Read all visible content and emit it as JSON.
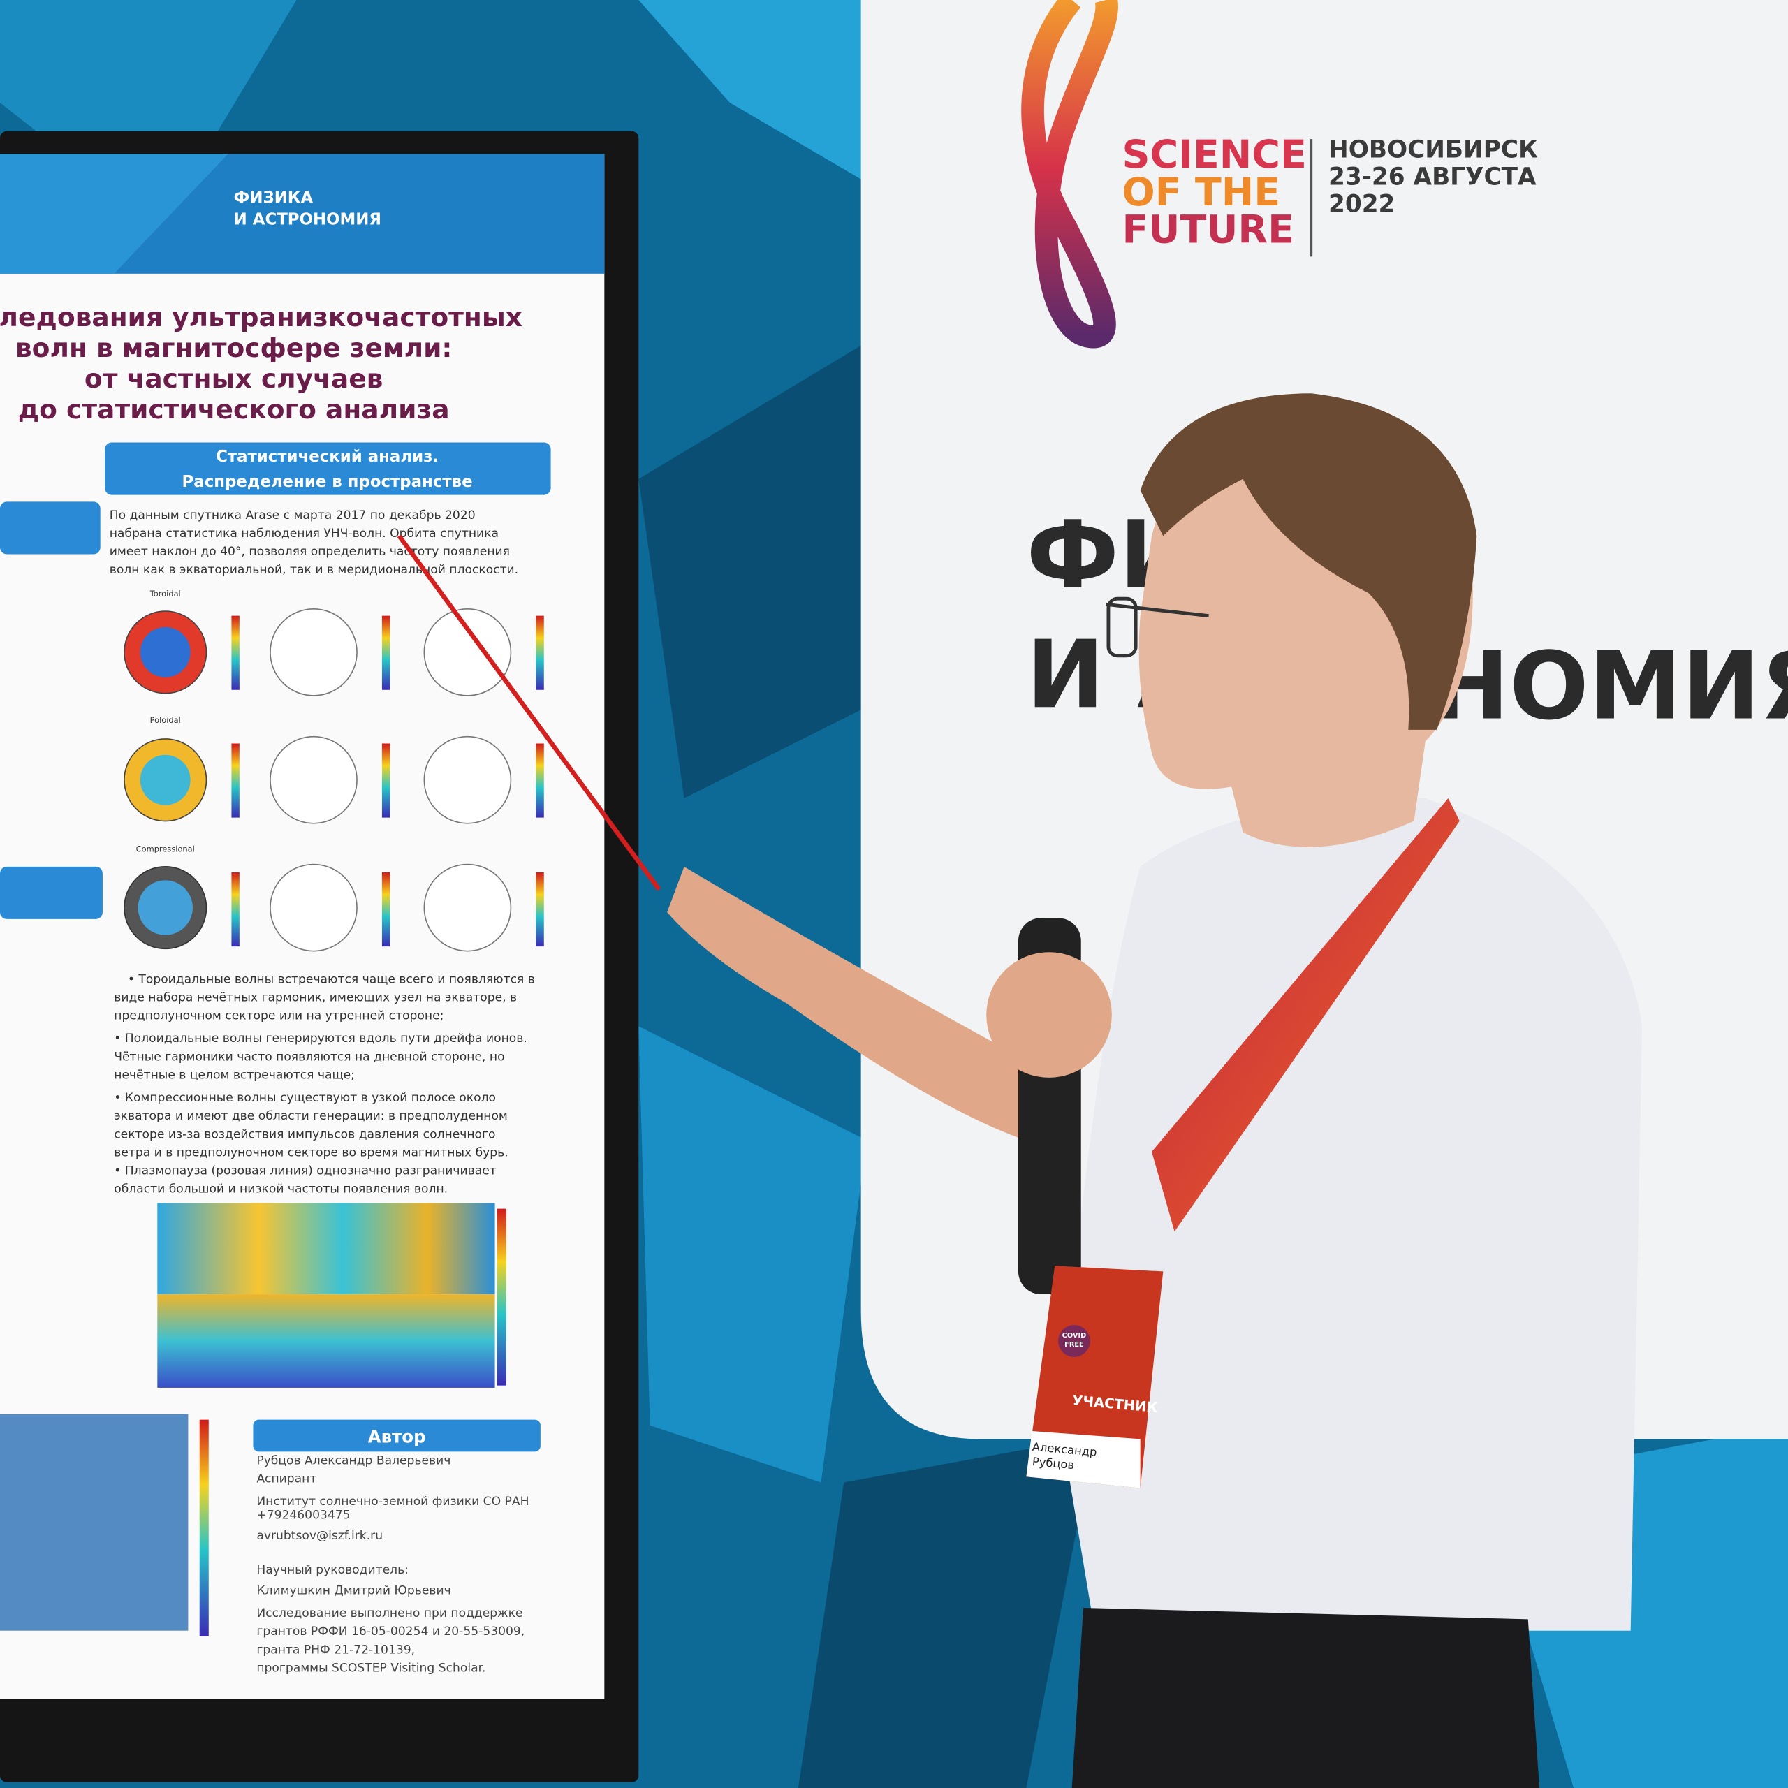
{
  "backdrop": {
    "brand": [
      "SCIENCE",
      "OF THE",
      "FUTURE"
    ],
    "event": [
      "НОВОСИБИРСК",
      "23-26 АВГУСТА",
      "2022"
    ],
    "heading": [
      "ФИ",
      "И А",
      "НОМИЯ"
    ]
  },
  "poster": {
    "section": [
      "ФИЗИКА",
      "И АСТРОНОМИЯ"
    ],
    "title": [
      "сследования ультранизкочастотных",
      "волн в магнитосфере земли:",
      "от частных случаев",
      "до статистического анализа"
    ],
    "box_title": [
      "Статистический анализ.",
      "Распределение в пространстве"
    ],
    "intro": [
      "По данным спутника Arase с марта 2017 по декабрь 2020",
      "набрана статистика наблюдения УНЧ-волн. Орбита спутника",
      "имеет наклон до 40°, позволяя определить частоту появления",
      "волн как в экваториальной, так и в меридиональной плоскости."
    ],
    "plot_labels": [
      "Toroidal",
      "Poloidal",
      "Compressional"
    ],
    "bullets": [
      "• Тороидальные волны встречаются чаще всего и появляются в",
      "виде набора нечётных гармоник, имеющих узел на экваторе, в",
      "предполуночном секторе или на утренней стороне;",
      "• Полоидальные волны генерируются вдоль пути дрейфа ионов.",
      "Чётные гармоники часто появляются на дневной стороне, но",
      "нечётные в целом встречаются чаще;",
      "• Компрессионные волны существуют в узкой полосе около",
      "экватора и имеют две области генерации: в предполуденном",
      "секторе из-за воздействия импульсов давления солнечного",
      "ветра и в предполуночном секторе во время магнитных бурь.",
      "• Плазмопауза (розовая линия) однозначно разграничивает",
      "области большой и низкой частоты появления волн."
    ],
    "author_heading": "Автор",
    "author": [
      "Рубцов Александр Валерьевич",
      "Аспирант",
      "Институт солнечно-земной физики СО РАН",
      "+79246003475",
      "avrubtsov@iszf.irk.ru",
      "",
      "Научный руководитель:",
      "Климушкин Дмитрий Юрьевич",
      "Исследование выполнено при поддержке",
      "грантов РФФИ 16-05-00254 и 20-55-53009,",
      "гранта РНФ 21-72-10139,",
      "программы SCOSTEP Visiting Scholar."
    ]
  },
  "badge": {
    "covid": [
      "COVID",
      "FREE"
    ],
    "role": "УЧАСТНИК",
    "name": [
      "Александр",
      "Рубцов"
    ]
  }
}
